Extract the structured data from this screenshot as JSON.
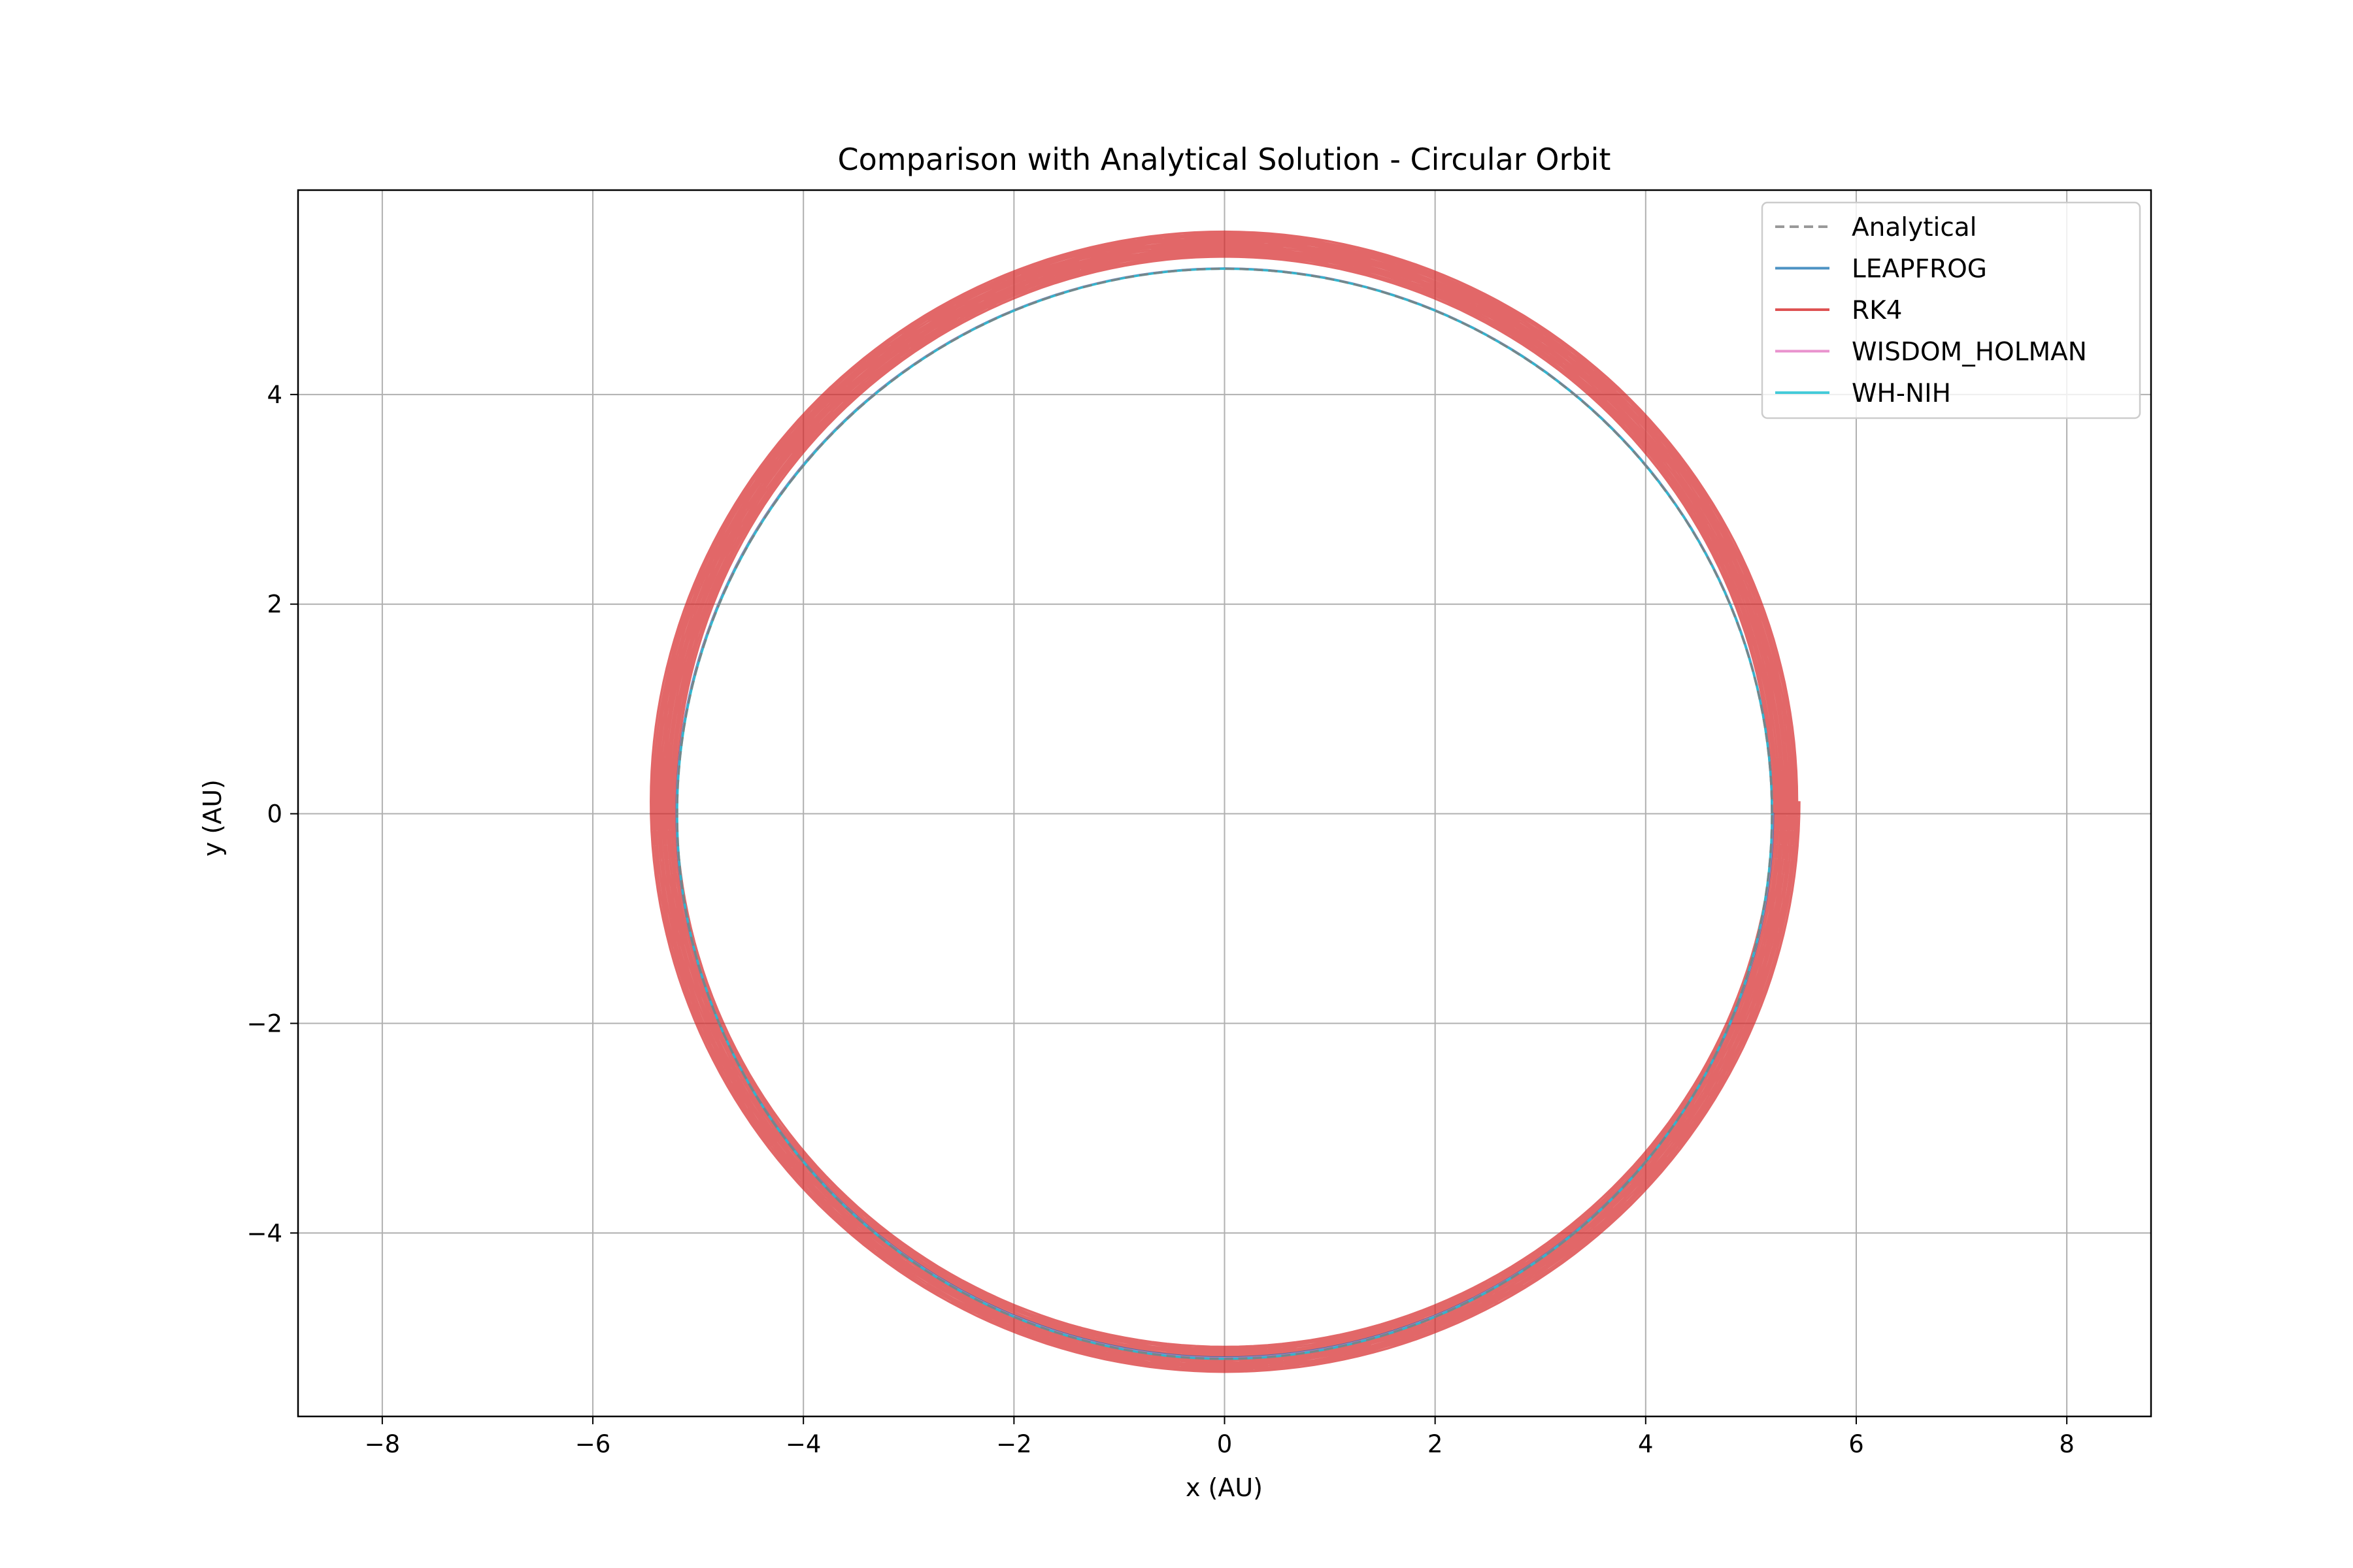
{
  "chart_data": {
    "type": "line",
    "title": "Comparison with Analytical Solution - Circular Orbit",
    "xlabel": "x (AU)",
    "ylabel": "y (AU)",
    "xlim": [
      -8.8,
      8.8
    ],
    "ylim": [
      -5.75,
      5.95
    ],
    "xticks": [
      -8,
      -6,
      -4,
      -2,
      0,
      2,
      4,
      6,
      8
    ],
    "xtick_labels": [
      "−8",
      "−6",
      "−4",
      "−2",
      "0",
      "2",
      "4",
      "6",
      "8"
    ],
    "yticks": [
      -4,
      -2,
      0,
      2,
      4
    ],
    "ytick_labels": [
      "−4",
      "−2",
      "0",
      "2",
      "4"
    ],
    "grid": true,
    "legend_position": "top-right",
    "series": [
      {
        "name": "Analytical",
        "color": "#7f7f7f",
        "style": "dashed",
        "orbit": {
          "cx": 0,
          "cy": 0,
          "rx": 5.2,
          "ry": 5.2,
          "drift": 0,
          "turns": 1
        }
      },
      {
        "name": "LEAPFROG",
        "color": "#1f77b4",
        "style": "solid",
        "orbit": {
          "cx": 0,
          "cy": 0.01,
          "rx": 5.2,
          "ry": 5.19,
          "drift": 0.01,
          "turns": 1
        }
      },
      {
        "name": "RK4",
        "color": "#d62728",
        "style": "solid",
        "orbit": {
          "cx": 0,
          "cy": 0.12,
          "rx": 5.2,
          "ry": 5.19,
          "drift": 0.26,
          "turns": 12
        }
      },
      {
        "name": "WISDOM_HOLMAN",
        "color": "#e377c2",
        "style": "solid",
        "orbit": {
          "cx": 0,
          "cy": 0.005,
          "rx": 5.2,
          "ry": 5.195,
          "drift": 0.005,
          "turns": 1
        }
      },
      {
        "name": "WH-NIH",
        "color": "#17becf",
        "style": "solid",
        "orbit": {
          "cx": 0,
          "cy": 0,
          "rx": 5.2,
          "ry": 5.2,
          "drift": 0,
          "turns": 1
        }
      }
    ]
  }
}
